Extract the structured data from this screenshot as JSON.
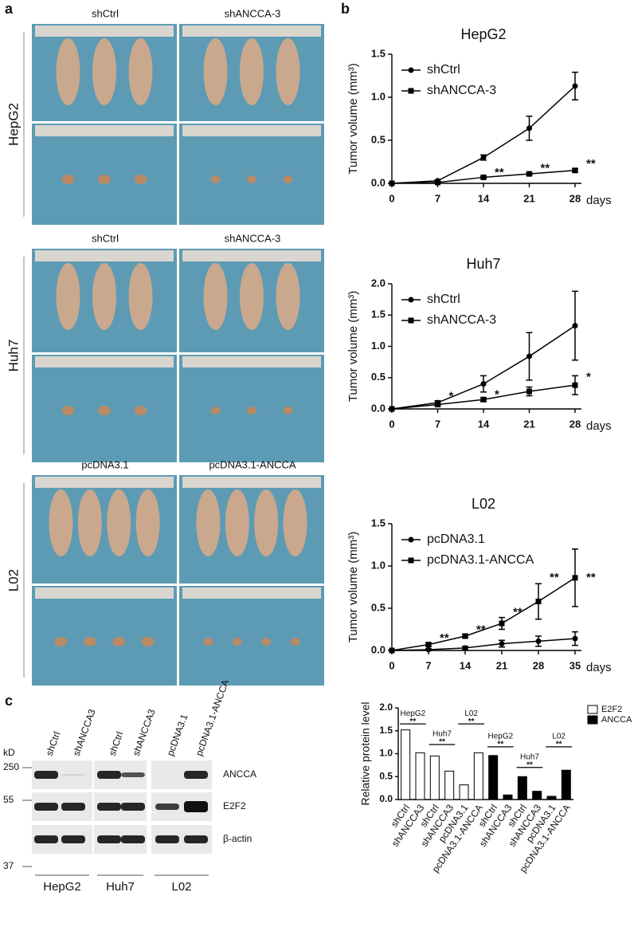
{
  "panel_labels": [
    "a",
    "b",
    "c"
  ],
  "photos": [
    {
      "cell": "HepG2",
      "conditions": [
        "shCtrl",
        "shANCCA-3"
      ]
    },
    {
      "cell": "Huh7",
      "conditions": [
        "shCtrl",
        "shANCCA-3"
      ]
    },
    {
      "cell": "L02",
      "conditions": [
        "pcDNA3.1",
        "pcDNA3.1-ANCCA"
      ]
    }
  ],
  "blot": {
    "lanes": [
      "shCtrl",
      "shANCCA3",
      "shCtrl",
      "shANCCA3",
      "pcDNA3.1",
      "pcDNA3.1-ANCCA"
    ],
    "kd_label": "kD",
    "markers": [
      250,
      55,
      37
    ],
    "proteins": [
      "ANCCA",
      "E2F2",
      "β-actin"
    ],
    "groups": [
      "HepG2",
      "Huh7",
      "L02"
    ]
  },
  "chart_data": [
    {
      "type": "line",
      "title": "HepG2",
      "ylabel": "Tumor volume (mm³)",
      "xlabel": "days",
      "x": [
        0,
        7,
        14,
        21,
        28
      ],
      "xlim": [
        0,
        28
      ],
      "xticks": [
        0,
        7,
        14,
        21,
        28
      ],
      "ylim": [
        0,
        1.5
      ],
      "yticks": [
        {
          "value": 0,
          "label": "0.0"
        },
        0.5,
        {
          "value": 1,
          "label": "1.0"
        },
        1.5
      ],
      "legend": "upper left",
      "series": [
        {
          "name": "shCtrl",
          "color": "#000000",
          "marker": "circle",
          "values": [
            0,
            0.03,
            0.3,
            0.64,
            1.13
          ],
          "errors": [
            0,
            0.01,
            0.03,
            0.14,
            0.16
          ]
        },
        {
          "name": "shANCCA-3",
          "color": "#000000",
          "marker": "square",
          "values": [
            0,
            0.01,
            0.07,
            0.11,
            0.15
          ],
          "errors": [
            0,
            0.005,
            0.01,
            0.015,
            0.02
          ]
        }
      ],
      "annotations": [
        {
          "text": "**",
          "x": 14,
          "y": 0.12
        },
        {
          "text": "**",
          "x": 21,
          "y": 0.17
        },
        {
          "text": "**",
          "x": 28,
          "y": 0.22
        }
      ]
    },
    {
      "type": "line",
      "title": "Huh7",
      "ylabel": "Tumor volume (mm³)",
      "xlabel": "days",
      "x": [
        0,
        7,
        14,
        21,
        28
      ],
      "xlim": [
        0,
        28
      ],
      "xticks": [
        0,
        7,
        14,
        21,
        28
      ],
      "ylim": [
        0,
        2
      ],
      "yticks": [
        {
          "value": 0,
          "label": "0.0"
        },
        0.5,
        {
          "value": 1,
          "label": "1.0"
        },
        1.5,
        {
          "value": 2,
          "label": "2.0"
        }
      ],
      "legend": "upper left",
      "series": [
        {
          "name": "shCtrl",
          "color": "#000000",
          "marker": "circle",
          "values": [
            0,
            0.1,
            0.4,
            0.84,
            1.33
          ],
          "errors": [
            0,
            0.03,
            0.13,
            0.38,
            0.55
          ]
        },
        {
          "name": "shANCCA-3",
          "color": "#000000",
          "marker": "square",
          "values": [
            0,
            0.07,
            0.15,
            0.28,
            0.38
          ],
          "errors": [
            0,
            0.02,
            0.03,
            0.07,
            0.15
          ]
        }
      ],
      "annotations": [
        {
          "text": "*",
          "x": 7,
          "y": 0.2
        },
        {
          "text": "*",
          "x": 14,
          "y": 0.22
        },
        {
          "text": "*",
          "x": 28,
          "y": 0.5
        }
      ]
    },
    {
      "type": "line",
      "title": "L02",
      "ylabel": "Tumor volume (mm³)",
      "xlabel": "days",
      "x": [
        0,
        7,
        14,
        21,
        28,
        35
      ],
      "xlim": [
        0,
        35
      ],
      "xticks": [
        0,
        7,
        14,
        21,
        28,
        35
      ],
      "ylim": [
        0,
        1.5
      ],
      "yticks": [
        {
          "value": 0,
          "label": "0.0"
        },
        0.5,
        {
          "value": 1,
          "label": "1.0"
        },
        1.5
      ],
      "legend": "upper left",
      "series": [
        {
          "name": "pcDNA3.1",
          "color": "#000000",
          "marker": "circle",
          "values": [
            0,
            0.01,
            0.03,
            0.08,
            0.11,
            0.14
          ],
          "errors": [
            0,
            0.01,
            0.02,
            0.04,
            0.06,
            0.08
          ]
        },
        {
          "name": "pcDNA3.1-ANCCA",
          "color": "#000000",
          "marker": "square",
          "values": [
            0,
            0.07,
            0.17,
            0.32,
            0.58,
            0.86
          ],
          "errors": [
            0,
            0.02,
            0.02,
            0.07,
            0.21,
            0.34
          ]
        }
      ],
      "annotations": [
        {
          "text": "**",
          "x": 7,
          "y": 0.14
        },
        {
          "text": "**",
          "x": 14,
          "y": 0.24
        },
        {
          "text": "**",
          "x": 21,
          "y": 0.45
        },
        {
          "text": "**",
          "x": 28,
          "y": 0.86
        },
        {
          "text": "**",
          "x": 35,
          "y": 0.86
        }
      ]
    },
    {
      "type": "bar",
      "ylabel": "Relative protein level",
      "categories": [
        "shCtrl",
        "shANCCA3",
        "shCtrl",
        "shANCCA3",
        "pcDNA3.1",
        "pcDNA3.1-ANCCA",
        "shCtrl",
        "shANCCA3",
        "shCtrl",
        "shANCCA3",
        "pcDNA3.1",
        "pcDNA3.1-ANCCA"
      ],
      "ylim": [
        0,
        2
      ],
      "yticks": [
        {
          "value": 0,
          "label": "0.0"
        },
        0.5,
        {
          "value": 1,
          "label": "1.0"
        },
        1.5,
        {
          "value": 2,
          "label": "2.0"
        }
      ],
      "legend": "upper right",
      "series": [
        {
          "name": "E2F2",
          "color": "#ffffff",
          "values": [
            1.52,
            1.02,
            0.95,
            0.62,
            0.32,
            1.02,
            null,
            null,
            null,
            null,
            null,
            null
          ]
        },
        {
          "name": "ANCCA",
          "color": "#000000",
          "values": [
            null,
            null,
            null,
            null,
            null,
            null,
            0.96,
            0.1,
            0.5,
            0.18,
            0.07,
            0.64
          ]
        }
      ],
      "brackets": [
        {
          "label": "HepG2",
          "text": "**",
          "from": 0,
          "to": 1,
          "y": 1.65
        },
        {
          "label": "Huh7",
          "text": "**",
          "from": 2,
          "to": 3,
          "y": 1.2
        },
        {
          "label": "L02",
          "text": "**",
          "from": 4,
          "to": 5,
          "y": 1.65
        },
        {
          "label": "HepG2",
          "text": "**",
          "from": 6,
          "to": 7,
          "y": 1.15
        },
        {
          "label": "Huh7",
          "text": "**",
          "from": 8,
          "to": 9,
          "y": 0.7
        },
        {
          "label": "L02",
          "text": "**",
          "from": 10,
          "to": 11,
          "y": 1.15
        }
      ]
    }
  ]
}
